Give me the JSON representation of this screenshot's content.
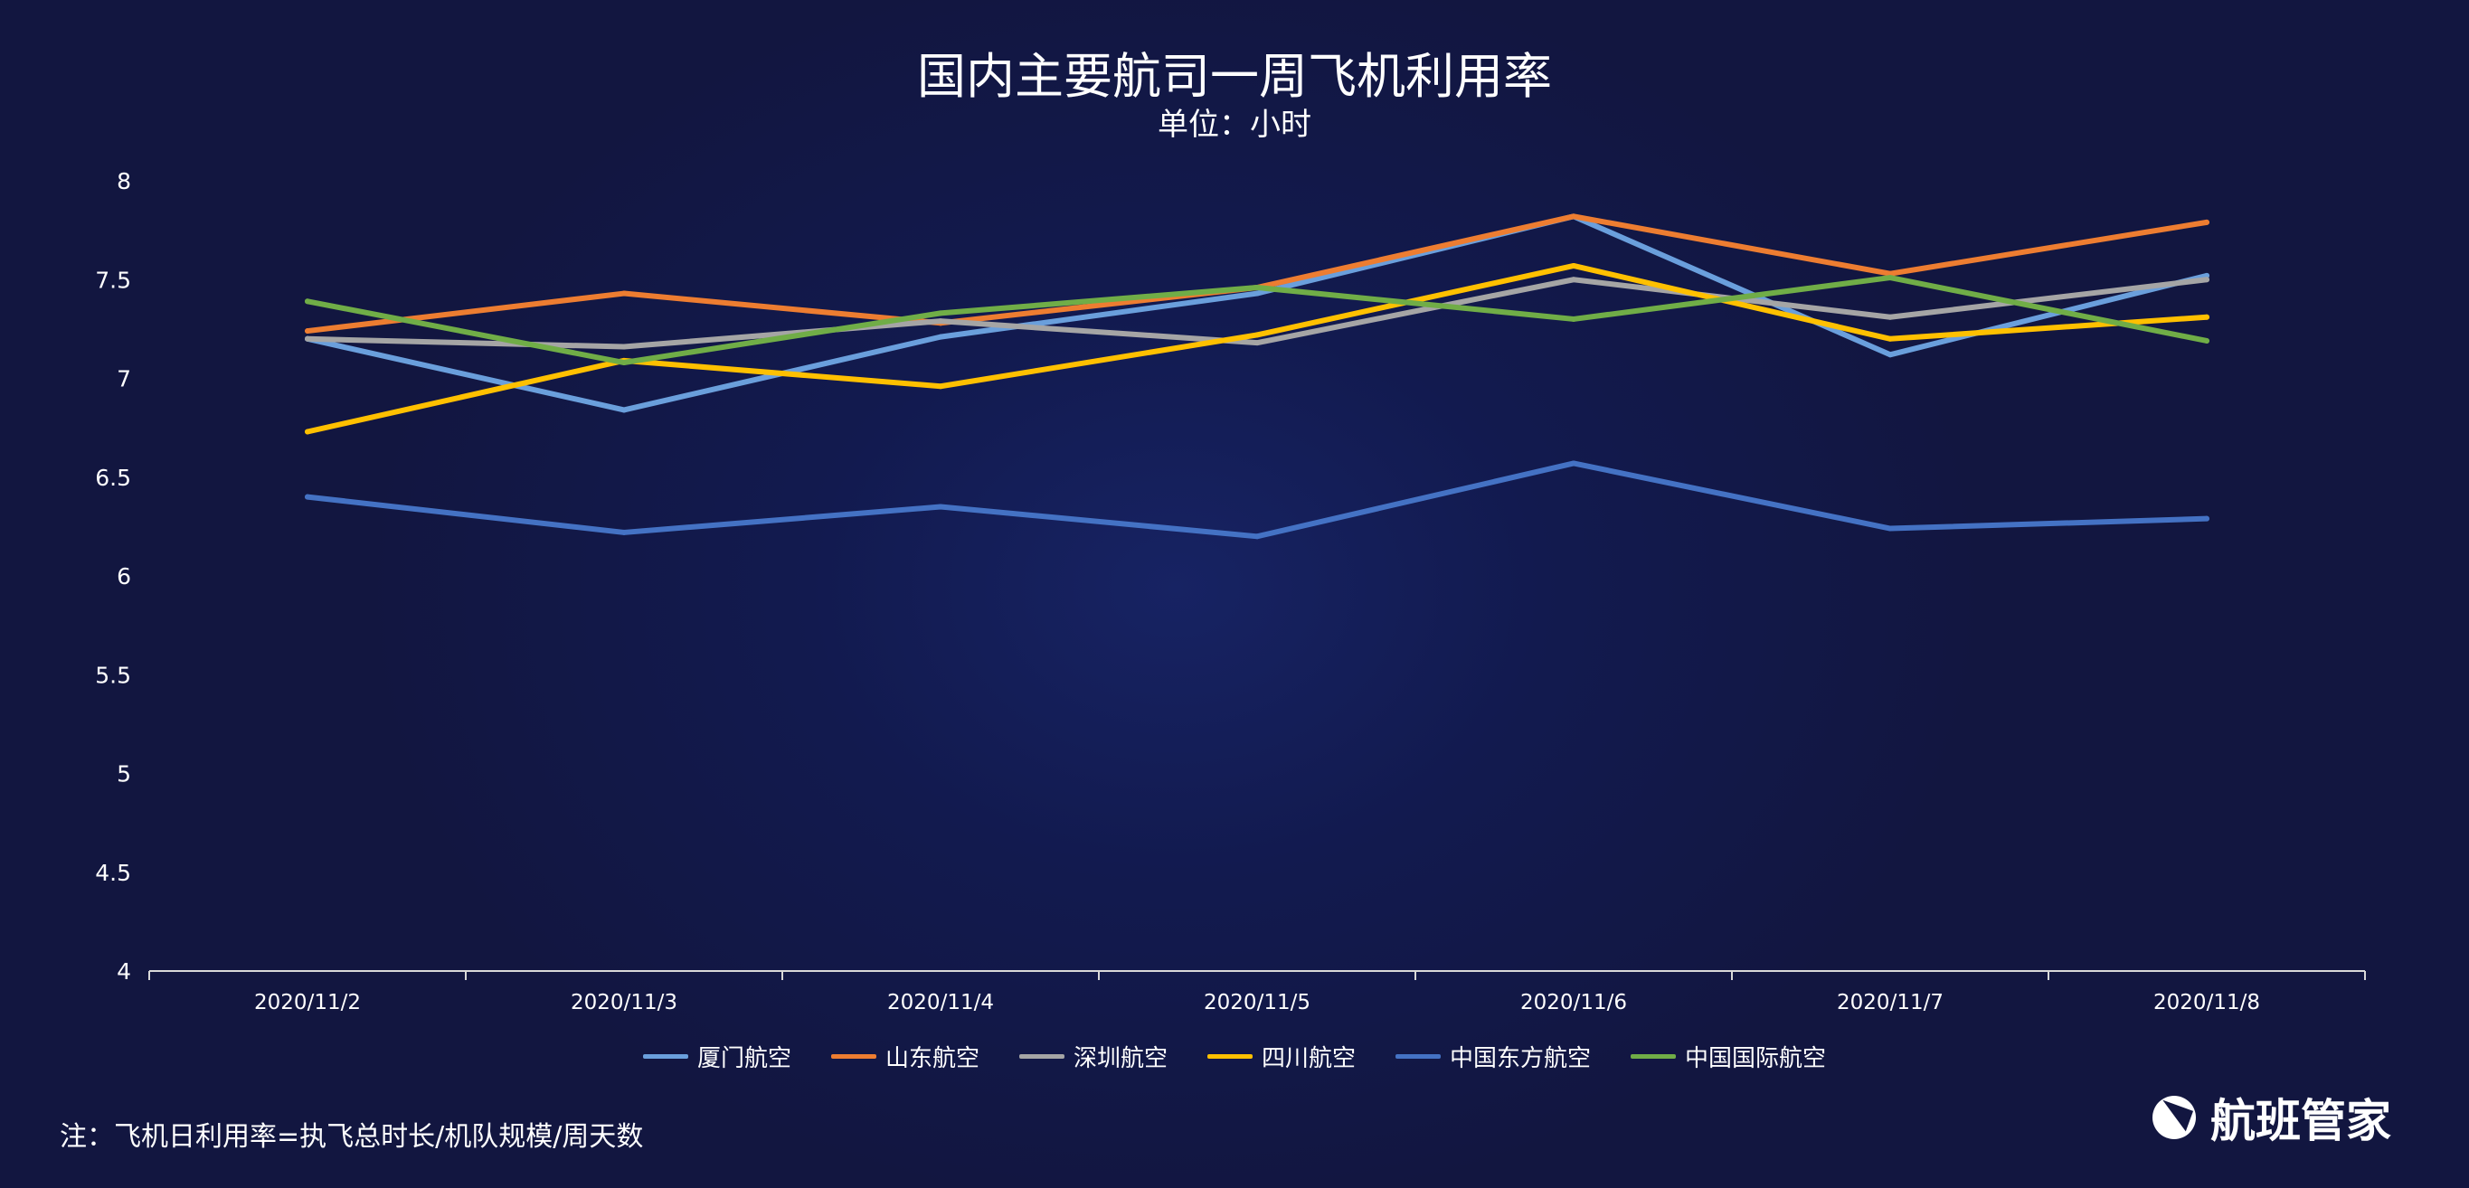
{
  "chart_data": {
    "type": "line",
    "title": "国内主要航司一周飞机利用率",
    "subtitle": "单位：小时",
    "categories": [
      "2020/11/2",
      "2020/11/3",
      "2020/11/4",
      "2020/11/5",
      "2020/11/6",
      "2020/11/7",
      "2020/11/8"
    ],
    "ylim": [
      4,
      8
    ],
    "yticks": [
      "4",
      "4.5",
      "5",
      "5.5",
      "6",
      "6.5",
      "7",
      "7.5",
      "8"
    ],
    "grid": false,
    "legend_position": "bottom",
    "series": [
      {
        "name": "厦门航空",
        "color": "#6a9fdc",
        "values": [
          7.2,
          6.84,
          7.21,
          7.43,
          7.82,
          7.12,
          7.52
        ]
      },
      {
        "name": "山东航空",
        "color": "#ed7d31",
        "values": [
          7.24,
          7.43,
          7.28,
          7.46,
          7.82,
          7.53,
          7.79
        ]
      },
      {
        "name": "深圳航空",
        "color": "#a5a5a5",
        "values": [
          7.2,
          7.16,
          7.29,
          7.18,
          7.5,
          7.31,
          7.5
        ]
      },
      {
        "name": "四川航空",
        "color": "#ffc000",
        "values": [
          6.73,
          7.09,
          6.96,
          7.22,
          7.57,
          7.2,
          7.31
        ]
      },
      {
        "name": "中国东方航空",
        "color": "#4472c4",
        "values": [
          6.4,
          6.22,
          6.35,
          6.2,
          6.57,
          6.24,
          6.29
        ]
      },
      {
        "name": "中国国际航空",
        "color": "#70ad47",
        "values": [
          7.39,
          7.08,
          7.33,
          7.46,
          7.3,
          7.51,
          7.19
        ]
      }
    ]
  },
  "note": "注：飞机日利用率=执飞总时长/机队规模/周天数",
  "logo": {
    "text": "航班管家"
  }
}
